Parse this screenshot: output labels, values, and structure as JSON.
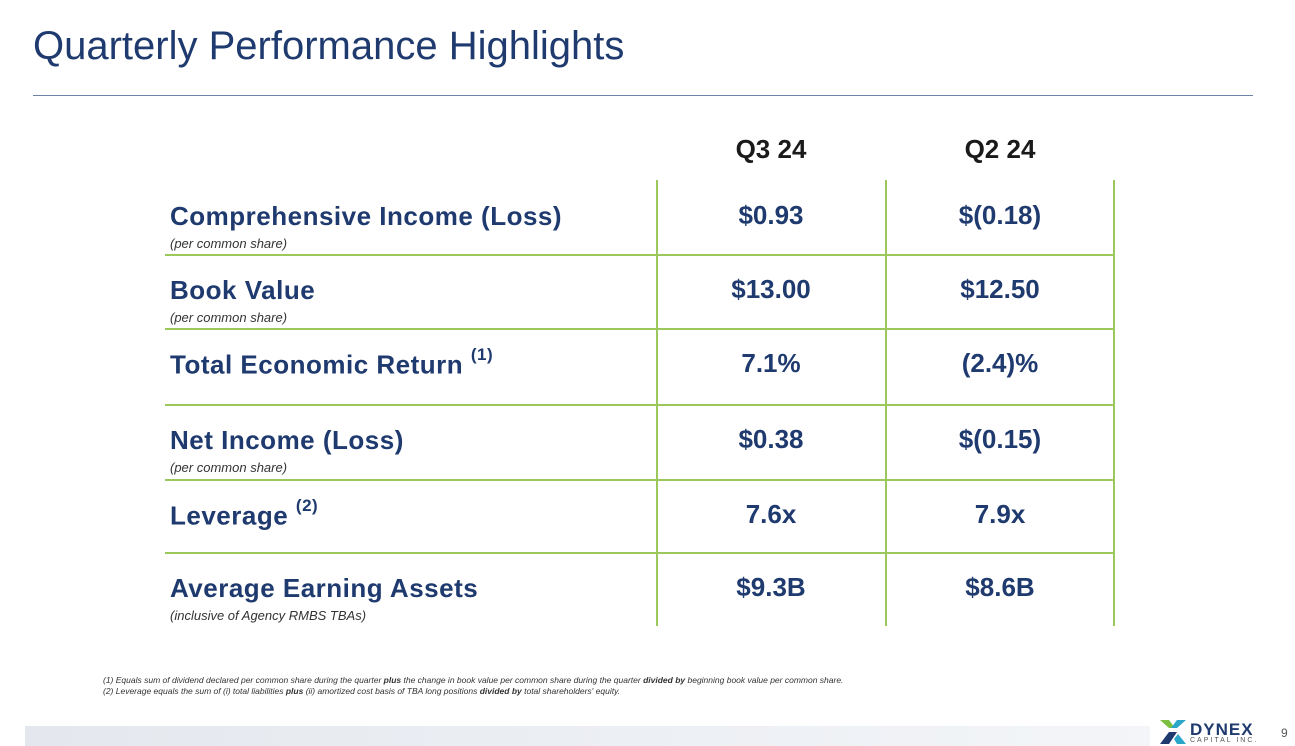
{
  "header": {
    "title": "Quarterly Performance Highlights"
  },
  "table": {
    "columns": [
      "Q3 24",
      "Q2 24"
    ],
    "rows": [
      {
        "label": "Comprehensive Income (Loss)",
        "sublabel": "(per common share)",
        "values": [
          "$0.93",
          "$(0.18)"
        ]
      },
      {
        "label": "Book Value",
        "sublabel": "(per common share)",
        "values": [
          "$13.00",
          "$12.50"
        ]
      },
      {
        "label": "Total Economic Return",
        "note": "(1)",
        "values": [
          "7.1%",
          "(2.4)%"
        ]
      },
      {
        "label": "Net Income (Loss)",
        "sublabel": "(per common share)",
        "values": [
          "$0.38",
          "$(0.15)"
        ]
      },
      {
        "label": "Leverage",
        "note": "(2)",
        "values": [
          "7.6x",
          "7.9x"
        ]
      },
      {
        "label": "Average Earning Assets",
        "sublabel": "(inclusive of Agency RMBS TBAs)",
        "values": [
          "$9.3B",
          "$8.6B"
        ]
      }
    ]
  },
  "footnotes": [
    [
      {
        "text": "(1) Equals sum of dividend declared per common share during the quarter "
      },
      {
        "text": "plus",
        "bold": true
      },
      {
        "text": " the change  in book value per common share during the quarter "
      },
      {
        "text": "divided by",
        "bold": true
      },
      {
        "text": " beginning book value per common share."
      }
    ],
    [
      {
        "text": "(2) Leverage equals the sum of (i) total liabilities "
      },
      {
        "text": "plus",
        "bold": true
      },
      {
        "text": " (ii) amortized cost basis of TBA long positions "
      },
      {
        "text": "divided by",
        "bold": true
      },
      {
        "text": " total shareholders' equity."
      }
    ]
  ],
  "footer": {
    "logo": "DYNEX",
    "logo_sub": "CAPITAL INC.",
    "page": "9"
  }
}
